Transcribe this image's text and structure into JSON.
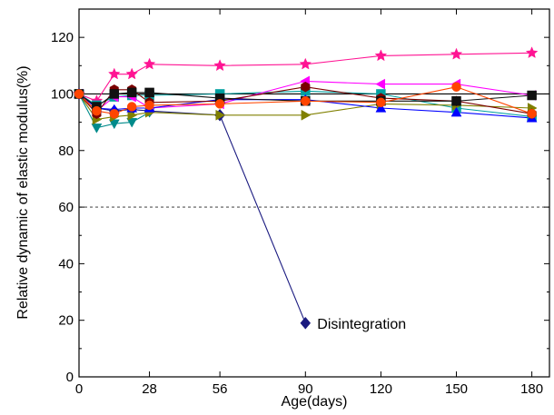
{
  "chart_data": {
    "type": "line",
    "title": "",
    "xlabel": "Age(days)",
    "ylabel": "Relative dynamic of elastic modulus(%)",
    "xlim": [
      0,
      187
    ],
    "ylim": [
      0,
      130
    ],
    "xticks": [
      0,
      28,
      56,
      90,
      120,
      150,
      180
    ],
    "yticks": [
      0,
      20,
      40,
      60,
      80,
      100,
      120
    ],
    "xtick_labels": [
      "0",
      "28",
      "56",
      "90",
      "120",
      "150",
      "180"
    ],
    "ytick_labels": [
      "0",
      "20",
      "40",
      "60",
      "80",
      "100",
      "120"
    ],
    "grid": false,
    "legend": "none",
    "reference_lines": [
      {
        "y": 100,
        "style": "solid",
        "color": "#000000"
      },
      {
        "y": 60,
        "style": "dashed",
        "color": "#555555"
      }
    ],
    "annotation": {
      "text": "Disintegration",
      "x": 90,
      "y": 19,
      "marker": "diamond",
      "color": "#1a1a80"
    },
    "series": [
      {
        "color": "#ff1493",
        "marker": "star",
        "x": [
          0,
          7,
          14,
          21,
          28,
          56,
          90,
          120,
          150,
          180
        ],
        "y": [
          100,
          97.5,
          107,
          107,
          110.5,
          110,
          110.5,
          113.5,
          114,
          114.5
        ]
      },
      {
        "color": "#1a1a80",
        "marker": "diamond",
        "x": [
          0,
          7,
          14,
          21,
          28,
          56,
          90
        ],
        "y": [
          100,
          95,
          94,
          94.5,
          94,
          92.5,
          19
        ]
      },
      {
        "color": "#00a0a0",
        "marker": "square",
        "x": [
          0,
          7,
          14,
          21,
          28,
          56,
          90,
          120,
          150,
          180
        ],
        "y": [
          100,
          96,
          99,
          99.5,
          99.5,
          100,
          101,
          100,
          95,
          92
        ]
      },
      {
        "color": "#008b8b",
        "marker": "triangle-down",
        "x": [
          0,
          7,
          14,
          21,
          28
        ],
        "y": [
          100,
          88,
          89.5,
          90,
          93.5
        ]
      },
      {
        "color": "#ff00ff",
        "marker": "triangle-left",
        "x": [
          0,
          7,
          14,
          21,
          28,
          56,
          90,
          120,
          150,
          180
        ],
        "y": [
          100,
          94,
          99,
          99,
          95,
          96.5,
          104.5,
          103.5,
          103.5,
          99.5
        ]
      },
      {
        "color": "#808000",
        "marker": "triangle-right",
        "x": [
          0,
          7,
          14,
          21,
          28,
          56,
          90,
          120,
          150,
          180
        ],
        "y": [
          100,
          91,
          92,
          92.5,
          93.5,
          92.5,
          92.5,
          96.5,
          96,
          95
        ]
      },
      {
        "color": "#0000ff",
        "marker": "triangle-up",
        "x": [
          0,
          7,
          14,
          21,
          28,
          56,
          90,
          120,
          150,
          180
        ],
        "y": [
          100,
          95,
          94.5,
          95,
          95,
          98,
          98,
          95,
          93.5,
          91.5
        ]
      },
      {
        "color": "#7b0000",
        "marker": "hexagon",
        "x": [
          0,
          7,
          14,
          21,
          28,
          56,
          90,
          120,
          150,
          180
        ],
        "y": [
          100,
          93,
          101.5,
          101.5,
          97,
          97.5,
          102.5,
          98.5,
          97.5,
          93
        ]
      },
      {
        "color": "#111111",
        "marker": "square",
        "x": [
          0,
          7,
          14,
          21,
          28,
          56,
          90,
          120,
          150,
          180
        ],
        "y": [
          100,
          95.5,
          100,
          100.5,
          100.5,
          98.5,
          97.5,
          97.5,
          97.5,
          99.5
        ]
      },
      {
        "color": "#ff4500",
        "marker": "circle",
        "x": [
          0,
          7,
          14,
          21,
          28,
          56,
          90,
          120,
          150,
          180
        ],
        "y": [
          100,
          94,
          93,
          95.5,
          96,
          96.5,
          97.5,
          97,
          102.5,
          93
        ]
      }
    ]
  }
}
